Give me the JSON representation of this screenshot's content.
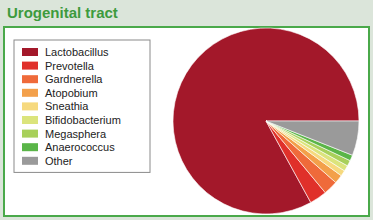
{
  "chart_data": {
    "type": "pie",
    "title": "Urogenital tract",
    "categories": [
      "Lactobacillus",
      "Prevotella",
      "Gardnerella",
      "Atopobium",
      "Sneathia",
      "Bifidobacterium",
      "Megasphera",
      "Anaerococcus",
      "Other"
    ],
    "values": [
      83,
      3,
      2.5,
      1.5,
      1,
      1,
      1,
      1,
      6
    ],
    "colors": [
      "#a3182a",
      "#e0302a",
      "#ef6a3a",
      "#f3a04a",
      "#f6d97e",
      "#dbe47c",
      "#a8d05a",
      "#5ab548",
      "#9a9a9a"
    ],
    "legend": "left"
  }
}
